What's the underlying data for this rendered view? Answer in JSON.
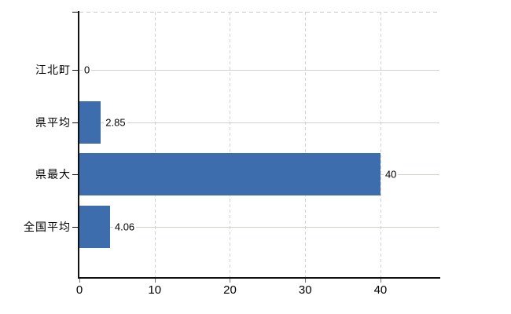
{
  "chart_data": {
    "type": "bar",
    "orientation": "horizontal",
    "title": "",
    "xlabel": "",
    "ylabel": "",
    "categories": [
      "江北町",
      "県平均",
      "県最大",
      "全国平均"
    ],
    "values": [
      0,
      2.85,
      40,
      4.06
    ],
    "value_labels": [
      "0",
      "2.85",
      "40",
      "4.06"
    ],
    "x_ticks": [
      0,
      10,
      20,
      30,
      40
    ],
    "x_tick_labels": [
      "0",
      "10",
      "20",
      "30",
      "40"
    ],
    "xlim": [
      0,
      47.84
    ],
    "grid": true,
    "legend": false
  },
  "colors": {
    "bar": "#3e6dae",
    "h_gridline": "#cdd4cb",
    "v_gridline": "#d3d3d7",
    "top_border": "#c9c9cd",
    "axis": "#111111",
    "background": "#ffffff",
    "text": "#000000"
  }
}
